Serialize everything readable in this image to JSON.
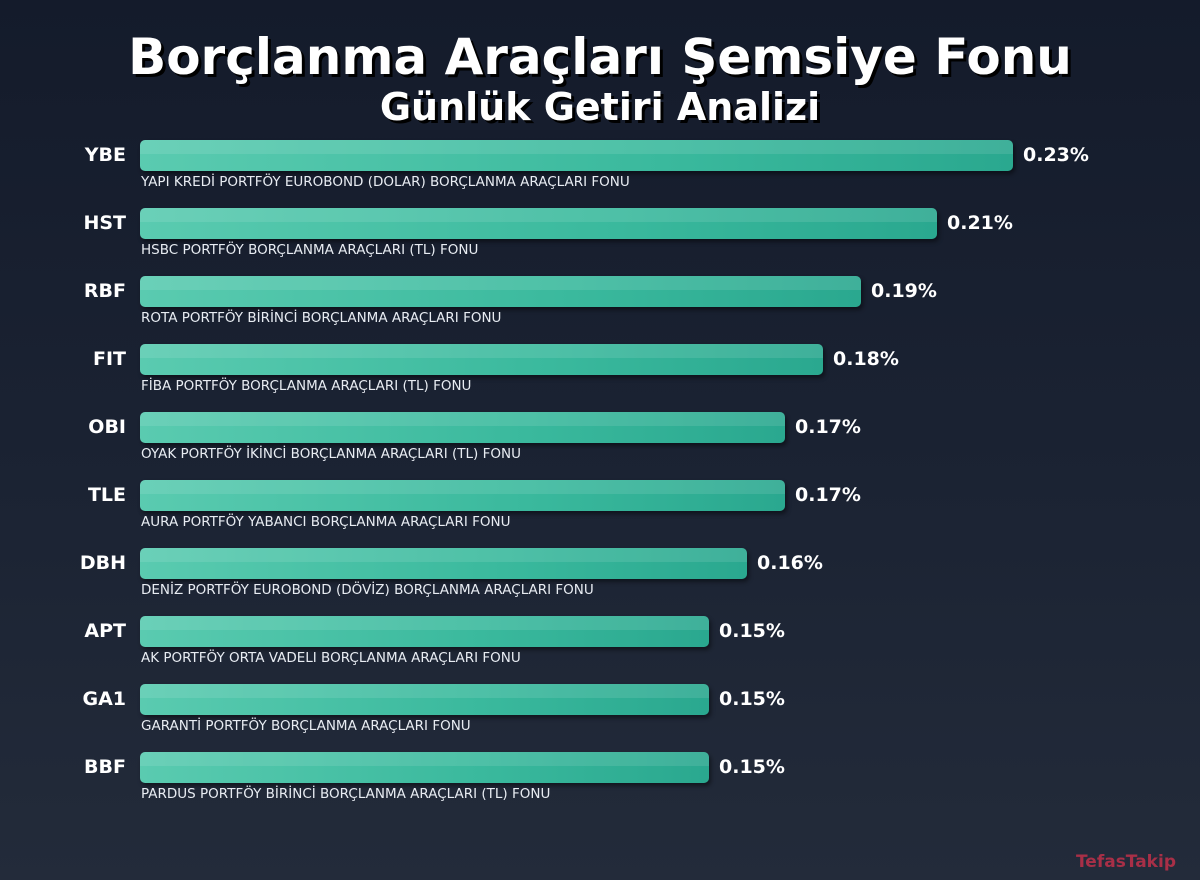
{
  "title": "Borçlanma Araçları Şemsiye Fonu",
  "subtitle": "Günlük Getiri Analizi",
  "watermark": "TefasTakip",
  "colors": {
    "bar": "#3ab99d",
    "background": "#1b2333",
    "watermark": "#c0304a"
  },
  "chart_data": {
    "type": "bar",
    "orientation": "horizontal",
    "title": "Borçlanma Araçları Şemsiye Fonu",
    "subtitle": "Günlük Getiri Analizi",
    "xlim": [
      0,
      0.23
    ],
    "grid": false,
    "categories": [
      "YBE",
      "HST",
      "RBF",
      "FIT",
      "OBI",
      "TLE",
      "DBH",
      "APT",
      "GA1",
      "BBF"
    ],
    "values": [
      0.23,
      0.21,
      0.19,
      0.18,
      0.17,
      0.17,
      0.16,
      0.15,
      0.15,
      0.15
    ],
    "value_labels": [
      "0.23%",
      "0.21%",
      "0.19%",
      "0.18%",
      "0.17%",
      "0.17%",
      "0.16%",
      "0.15%",
      "0.15%",
      "0.15%"
    ],
    "fund_names": [
      "YAPI KREDİ PORTFÖY EUROBOND (DOLAR) BORÇLANMA ARAÇLARI FONU",
      "HSBC PORTFÖY  BORÇLANMA ARAÇLARI (TL) FONU",
      "ROTA PORTFÖY BİRİNCİ BORÇLANMA ARAÇLARI FONU",
      "FİBA PORTFÖY BORÇLANMA ARAÇLARI (TL) FONU",
      "OYAK PORTFÖY İKİNCİ BORÇLANMA ARAÇLARI (TL) FONU",
      "AURA PORTFÖY YABANCI BORÇLANMA ARAÇLARI FONU",
      "DENİZ PORTFÖY EUROBOND (DÖVİZ) BORÇLANMA ARAÇLARI FONU",
      "AK PORTFÖY ORTA VADELI BORÇLANMA ARAÇLARI FONU",
      "GARANTİ PORTFÖY BORÇLANMA ARAÇLARI FONU",
      "PARDUS PORTFÖY BİRİNCİ BORÇLANMA ARAÇLARI (TL) FONU"
    ]
  }
}
